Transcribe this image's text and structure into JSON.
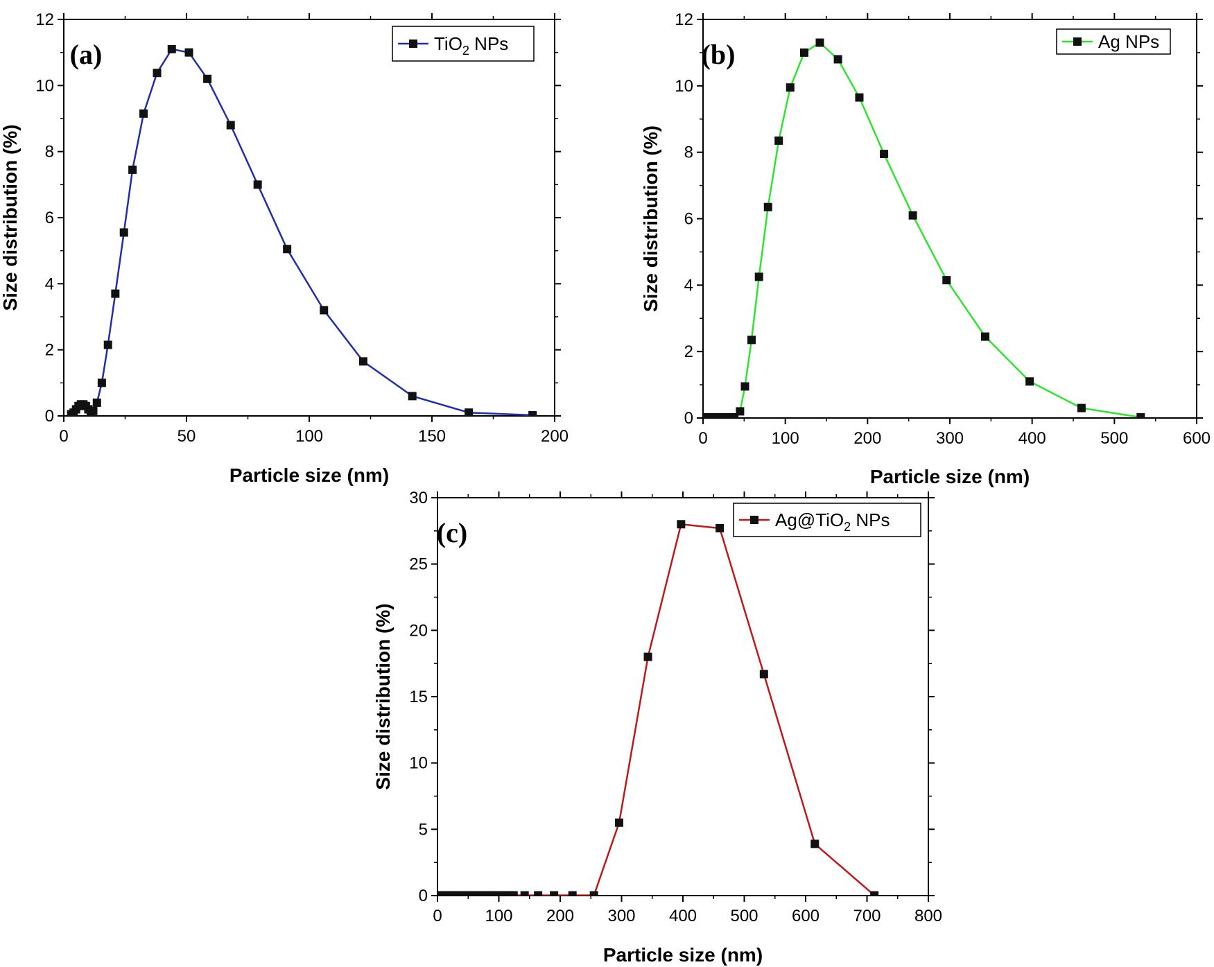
{
  "chart_data": [
    {
      "type": "line",
      "panel_label": "(a)",
      "series_color": "#1f2db0",
      "legend": {
        "name": "TiO",
        "subscript": "2",
        "suffix": " NPs",
        "placement": "top-right"
      },
      "xlabel": "Particle size (nm)",
      "ylabel": "Size distribution (%)",
      "xlim": [
        0,
        200
      ],
      "ylim": [
        0,
        12
      ],
      "xticks": [
        "0",
        "50",
        "100",
        "150",
        "200"
      ],
      "yticks": [
        "0",
        "2",
        "4",
        "6",
        "8",
        "10",
        "12"
      ],
      "x": [
        3,
        4,
        5,
        6,
        7,
        8,
        9,
        10,
        11,
        12,
        13.5,
        15.5,
        18,
        21,
        24.5,
        28,
        32.5,
        38,
        44,
        51,
        58.5,
        68,
        79,
        91,
        106,
        122,
        142,
        165,
        191
      ],
      "y": [
        0.05,
        0.1,
        0.2,
        0.3,
        0.35,
        0.35,
        0.3,
        0.2,
        0.1,
        0.15,
        0.4,
        1.0,
        2.15,
        3.7,
        5.55,
        7.45,
        9.15,
        10.38,
        11.1,
        11.0,
        10.2,
        8.8,
        7.0,
        5.05,
        3.2,
        1.65,
        0.6,
        0.1,
        0.02
      ]
    },
    {
      "type": "line",
      "panel_label": "(b)",
      "series_color": "#2ee52e",
      "legend": {
        "name": "Ag",
        "subscript": "",
        "suffix": " NPs",
        "placement": "top-right"
      },
      "xlabel": "Particle size (nm)",
      "ylabel": "Size distribution (%)",
      "xlim": [
        0,
        600
      ],
      "ylim": [
        0,
        12
      ],
      "xticks": [
        "0",
        "100",
        "200",
        "300",
        "400",
        "500",
        "600"
      ],
      "yticks": [
        "0",
        "2",
        "4",
        "6",
        "8",
        "10",
        "12"
      ],
      "x": [
        2,
        6,
        10,
        14,
        18,
        22,
        26,
        30,
        34,
        38,
        45,
        51,
        59,
        68,
        79,
        92,
        106,
        123,
        142,
        164,
        190,
        220,
        255,
        296,
        343,
        397,
        460,
        532
      ],
      "y": [
        0.02,
        0.02,
        0.02,
        0.02,
        0.02,
        0.02,
        0.02,
        0.02,
        0.02,
        0.02,
        0.2,
        0.95,
        2.35,
        4.25,
        6.35,
        8.35,
        9.95,
        11.0,
        11.3,
        10.8,
        9.65,
        7.95,
        6.1,
        4.15,
        2.45,
        1.1,
        0.3,
        0.02
      ]
    },
    {
      "type": "line",
      "panel_label": "(c)",
      "series_color": "#c01818",
      "legend": {
        "name": "Ag@TiO",
        "subscript": "2",
        "suffix": " NPs",
        "placement": "top-right"
      },
      "xlabel": "Particle size (nm)",
      "ylabel": "Size distribution (%)",
      "xlim": [
        0,
        800
      ],
      "ylim": [
        0,
        30
      ],
      "xticks": [
        "0",
        "100",
        "200",
        "300",
        "400",
        "500",
        "600",
        "700",
        "800"
      ],
      "yticks": [
        "0",
        "5",
        "10",
        "15",
        "20",
        "25",
        "30"
      ],
      "x": [
        4,
        10,
        16,
        22,
        28,
        34,
        40,
        46,
        52,
        58,
        64,
        70,
        76,
        82,
        88,
        94,
        100,
        106,
        112,
        118,
        124,
        142,
        164,
        190,
        220,
        255,
        296,
        343,
        397,
        460,
        532,
        615,
        712
      ],
      "y": [
        0.02,
        0.02,
        0.02,
        0.02,
        0.02,
        0.02,
        0.02,
        0.02,
        0.02,
        0.02,
        0.02,
        0.02,
        0.02,
        0.02,
        0.02,
        0.02,
        0.02,
        0.02,
        0.02,
        0.02,
        0.02,
        0.02,
        0.02,
        0.02,
        0.02,
        0.02,
        5.5,
        18.0,
        28.0,
        27.7,
        16.7,
        3.9,
        0.02
      ]
    }
  ]
}
